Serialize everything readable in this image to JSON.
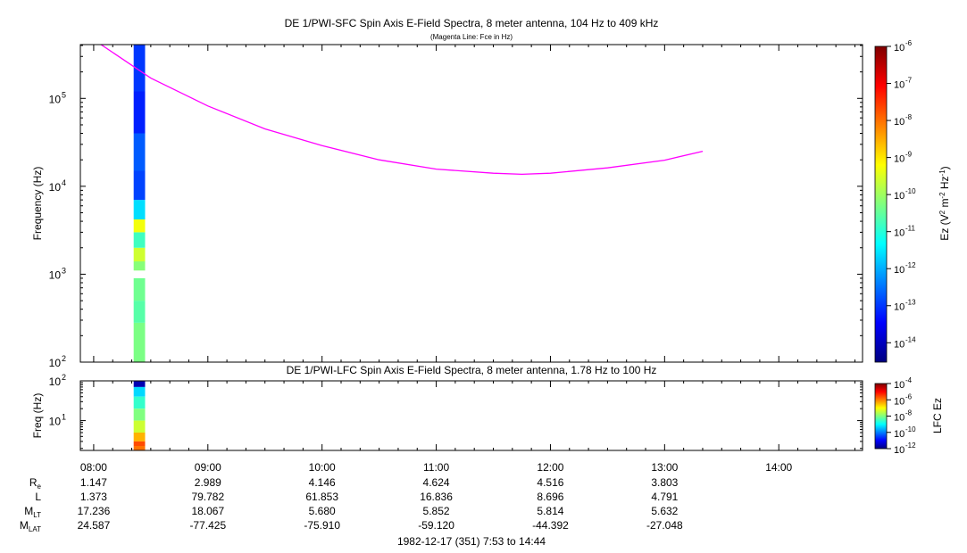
{
  "chart_data": [
    {
      "type": "heatmap",
      "title": "DE 1/PWI-SFC  Spin Axis E-Field Spectra, 8 meter antenna, 104 Hz to 409 kHz",
      "subtitle": "(Magenta Line: Fce in Hz)",
      "ylabel": "Frequency (Hz)",
      "yscale": "log",
      "ylim": [
        100,
        409000
      ],
      "yticks": [
        {
          "exp": "2",
          "value": 100
        },
        {
          "exp": "3",
          "value": 1000
        },
        {
          "exp": "4",
          "value": 10000
        },
        {
          "exp": "5",
          "value": 100000
        }
      ],
      "xlim": [
        "07:53",
        "14:44"
      ],
      "colorbar": {
        "label_main": "Ez (V",
        "label_sup1": "2",
        "label_mid": " m",
        "label_sup2": "-2",
        "label_mid2": " Hz",
        "label_sup3": "-1",
        "label_end": ")",
        "scale": "log",
        "range": [
          3e-15,
          1e-06
        ],
        "ticks": [
          "-6",
          "-7",
          "-8",
          "-9",
          "-10",
          "-11",
          "-12",
          "-13",
          "-14"
        ]
      },
      "segments": [
        {
          "f0": 100,
          "f1": 280,
          "log10_ez": -10.3
        },
        {
          "f0": 280,
          "f1": 500,
          "log10_ez": -10.6
        },
        {
          "f0": 500,
          "f1": 900,
          "log10_ez": -10.4
        },
        {
          "f0": 1100,
          "f1": 1400,
          "log10_ez": -10.2
        },
        {
          "f0": 1400,
          "f1": 2000,
          "log10_ez": -9.6
        },
        {
          "f0": 2000,
          "f1": 3000,
          "log10_ez": -10.8
        },
        {
          "f0": 3000,
          "f1": 4200,
          "log10_ez": -9.3
        },
        {
          "f0": 4200,
          "f1": 7000,
          "log10_ez": -11.6
        },
        {
          "f0": 7000,
          "f1": 15000,
          "log10_ez": -12.9
        },
        {
          "f0": 15000,
          "f1": 40000,
          "log10_ez": -12.7
        },
        {
          "f0": 40000,
          "f1": 120000,
          "log10_ez": -13.2
        },
        {
          "f0": 120000,
          "f1": 409000,
          "log10_ez": -13.0
        }
      ],
      "segment_time": [
        "08:21",
        "08:27"
      ],
      "series": [
        {
          "name": "Fce",
          "color": "#ff00ff",
          "x": [
            "08:01",
            "08:30",
            "09:00",
            "09:30",
            "10:00",
            "10:30",
            "11:00",
            "11:30",
            "11:45",
            "12:00",
            "12:30",
            "13:00",
            "13:20"
          ],
          "y": [
            450000,
            170000,
            82000,
            45000,
            29000,
            20000,
            15700,
            14100,
            13700,
            14100,
            16200,
            19800,
            25000
          ]
        }
      ]
    },
    {
      "type": "heatmap",
      "title": "DE 1/PWI-LFC  Spin Axis E-Field Spectra, 8 meter antenna, 1.78 Hz to 100 Hz",
      "ylabel": "Freq (Hz)",
      "yscale": "log",
      "ylim": [
        1.78,
        100
      ],
      "yticks": [
        {
          "exp": "1",
          "value": 10
        },
        {
          "exp": "2",
          "value": 100
        }
      ],
      "xlim": [
        "07:53",
        "14:44"
      ],
      "colorbar": {
        "label": "LFC Ez",
        "scale": "log",
        "range": [
          1e-12,
          0.0001
        ],
        "ticks": [
          "-4",
          "-6",
          "-8",
          "-10",
          "-12"
        ]
      },
      "segments": [
        {
          "f0": 70,
          "f1": 100,
          "log10_ez": -11.6
        },
        {
          "f0": 40,
          "f1": 70,
          "log10_ez": -9.3
        },
        {
          "f0": 20,
          "f1": 40,
          "log10_ez": -8.6
        },
        {
          "f0": 10,
          "f1": 20,
          "log10_ez": -8.0
        },
        {
          "f0": 5,
          "f1": 10,
          "log10_ez": -7.4
        },
        {
          "f0": 3,
          "f1": 5,
          "log10_ez": -6.4
        },
        {
          "f0": 2.3,
          "f1": 3,
          "log10_ez": -5.6
        },
        {
          "f0": 1.78,
          "f1": 2.3,
          "log10_ez": -5.9
        }
      ],
      "segment_time": [
        "08:21",
        "08:27"
      ]
    }
  ],
  "time_axis": {
    "ticks": [
      "08:00",
      "09:00",
      "10:00",
      "11:00",
      "12:00",
      "13:00",
      "14:00"
    ]
  },
  "ephemeris": {
    "labels": [
      {
        "main": "R",
        "sub": "e"
      },
      {
        "main": "L",
        "sub": ""
      },
      {
        "main": "M",
        "sub": "LT"
      },
      {
        "main": "M",
        "sub": "LAT"
      }
    ],
    "rows": [
      [
        "1.147",
        "2.989",
        "4.146",
        "4.624",
        "4.516",
        "3.803"
      ],
      [
        "1.373",
        "79.782",
        "61.853",
        "16.836",
        "8.696",
        "4.791"
      ],
      [
        "17.236",
        "18.067",
        "5.680",
        "5.852",
        "5.814",
        "5.632"
      ],
      [
        "24.587",
        "-77.425",
        "-75.910",
        "-59.120",
        "-44.392",
        "-27.048"
      ]
    ]
  },
  "footer": "1982-12-17 (351) 7:53 to 14:44"
}
